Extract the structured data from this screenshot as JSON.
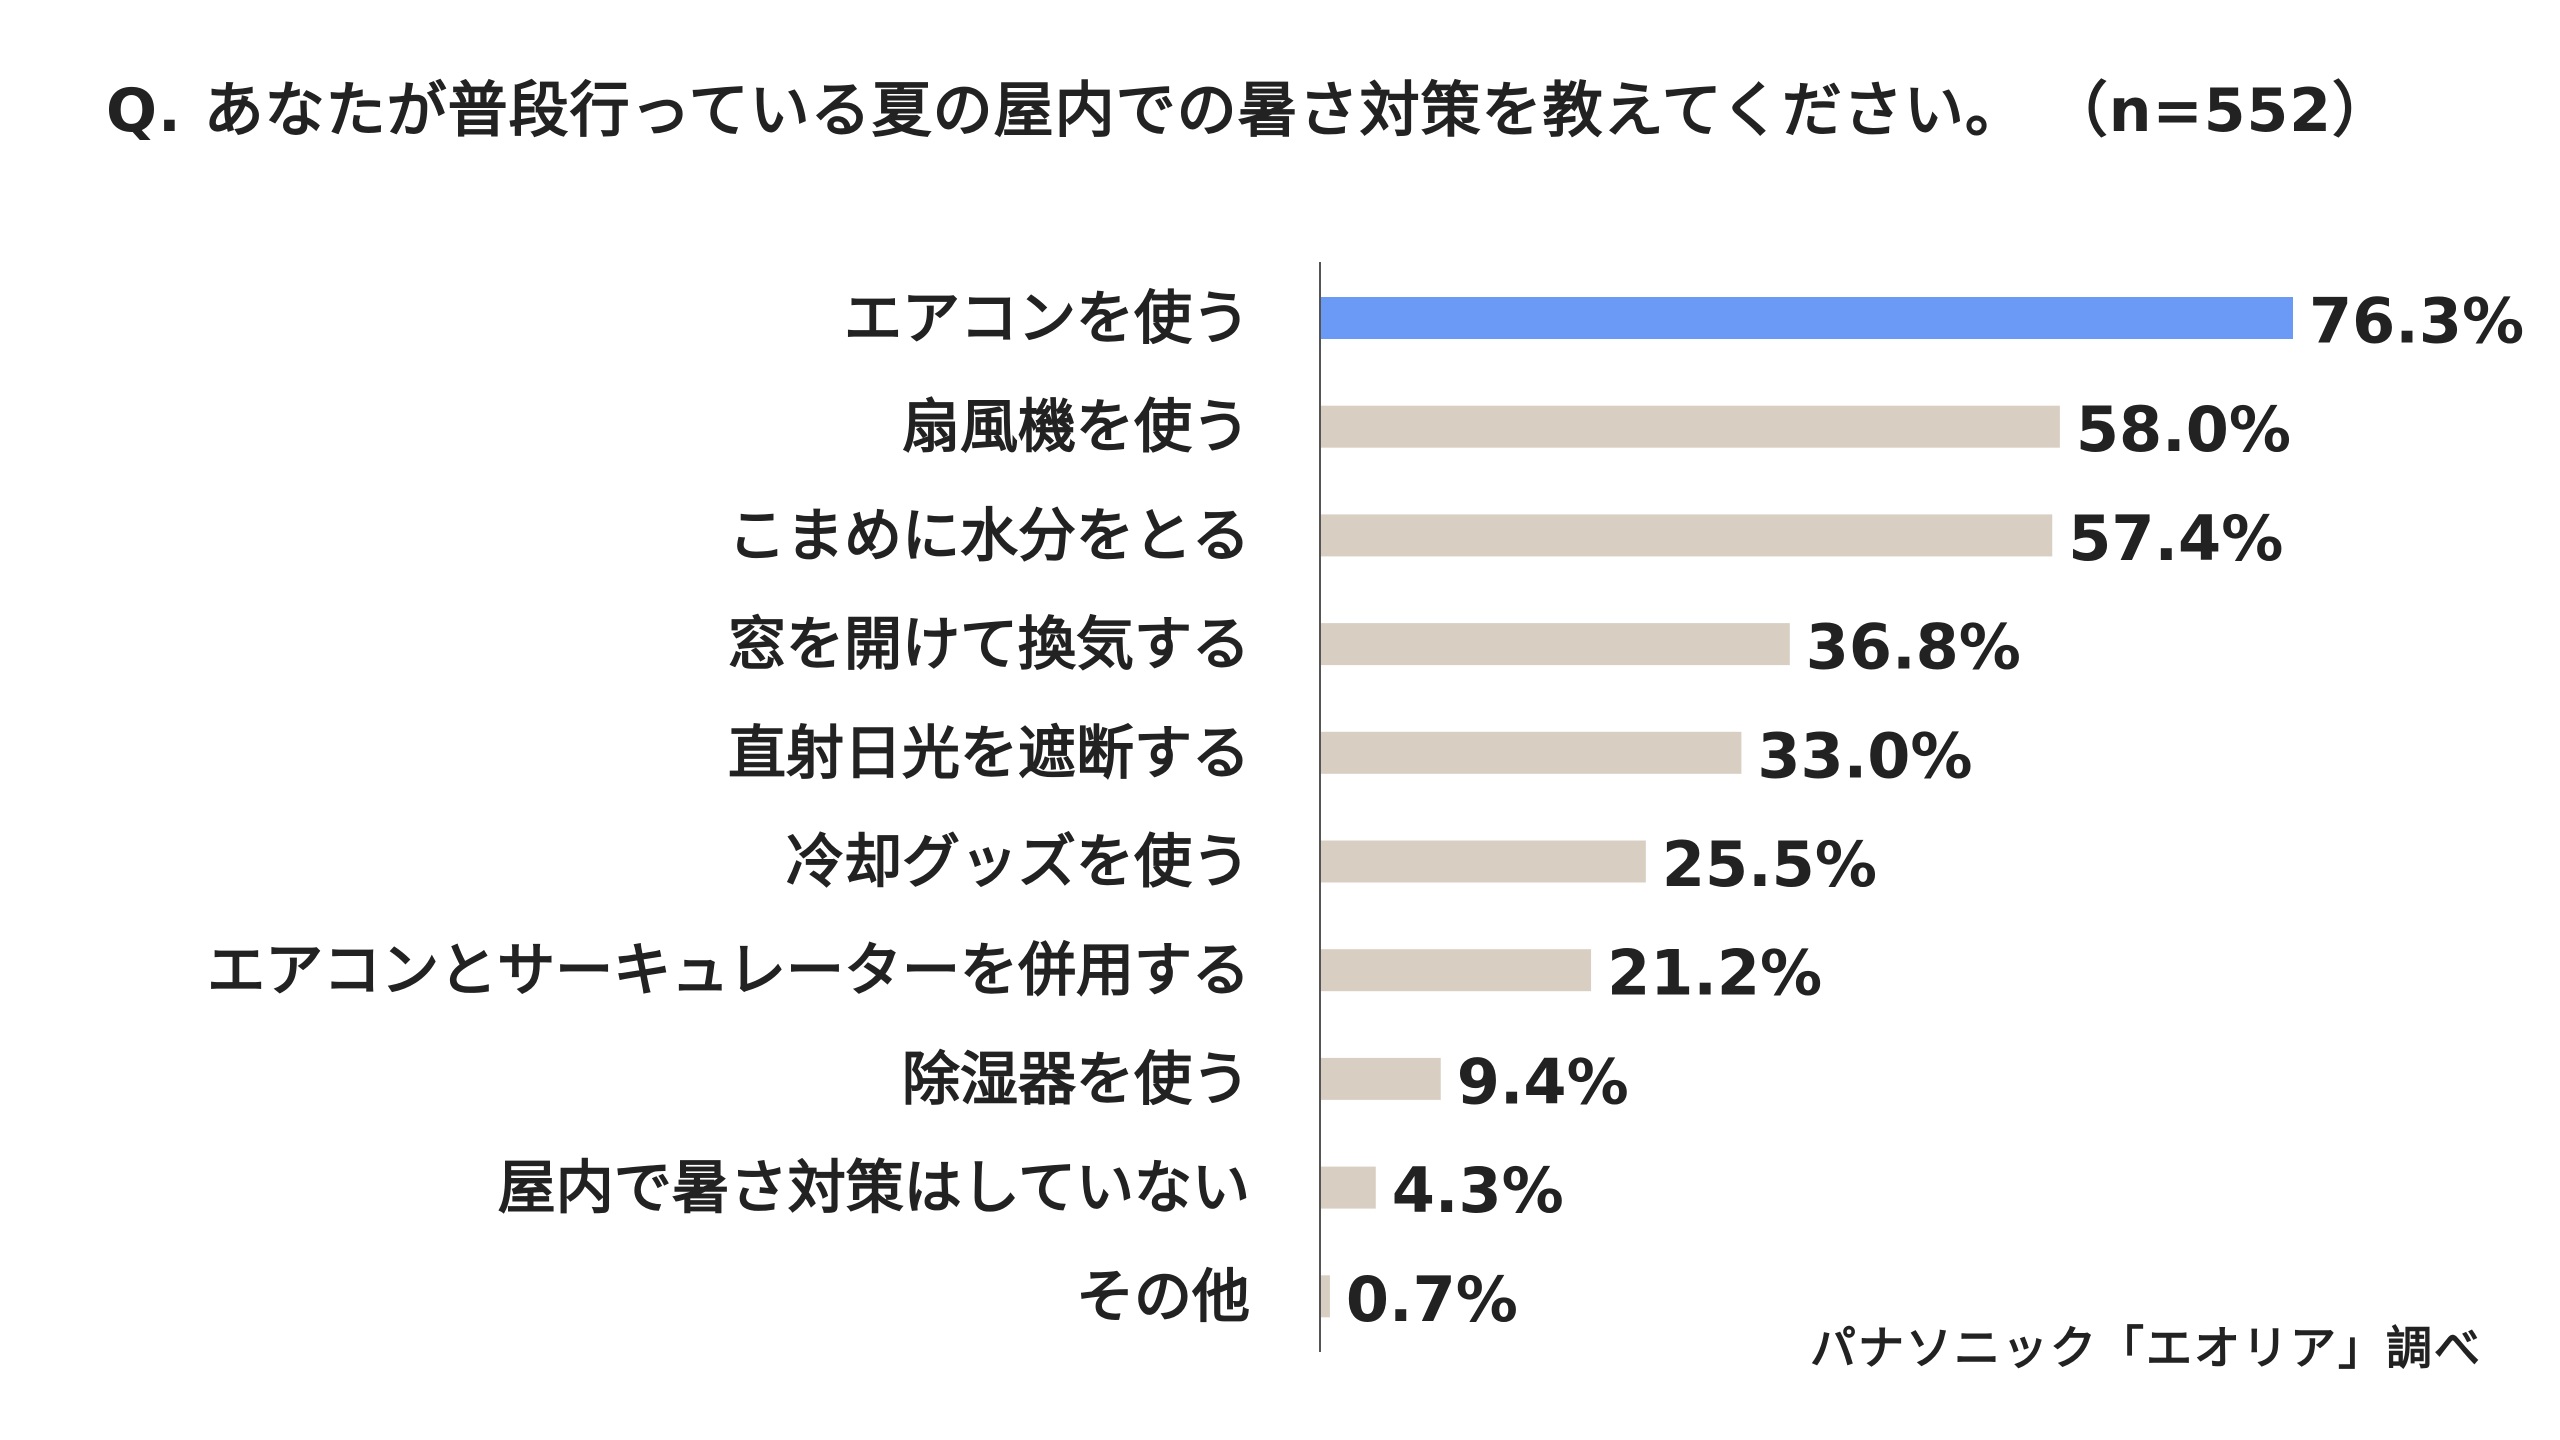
{
  "title": "Q. あなたが普段行っている夏の屋内での暑さ対策を教えてください。 （n=552）",
  "source": "パナソニック「エオリア」調べ",
  "colors": {
    "highlight": "#6a9af5",
    "bar": "#d8cfc2",
    "axis": "#555555",
    "text": "#222222"
  },
  "chart_data": {
    "type": "bar",
    "orientation": "horizontal",
    "unit": "%",
    "categories": [
      "エアコンを使う",
      "扇風機を使う",
      "こまめに水分をとる",
      "窓を開けて換気する",
      "直射日光を遮断する",
      "冷却グッズを使う",
      "エアコンとサーキュレーターを併用する",
      "除湿器を使う",
      "屋内で暑さ対策はしていない",
      "その他"
    ],
    "values": [
      76.3,
      58.0,
      57.4,
      36.8,
      33.0,
      25.5,
      21.2,
      9.4,
      4.3,
      0.7
    ],
    "value_labels": [
      "76.3%",
      "58.0%",
      "57.4%",
      "36.8%",
      "33.0%",
      "25.5%",
      "21.2%",
      "9.4%",
      "4.3%",
      "0.7%"
    ],
    "highlight_index": 0,
    "xlim": [
      0,
      76.3
    ],
    "grid": false,
    "legend": "none"
  }
}
